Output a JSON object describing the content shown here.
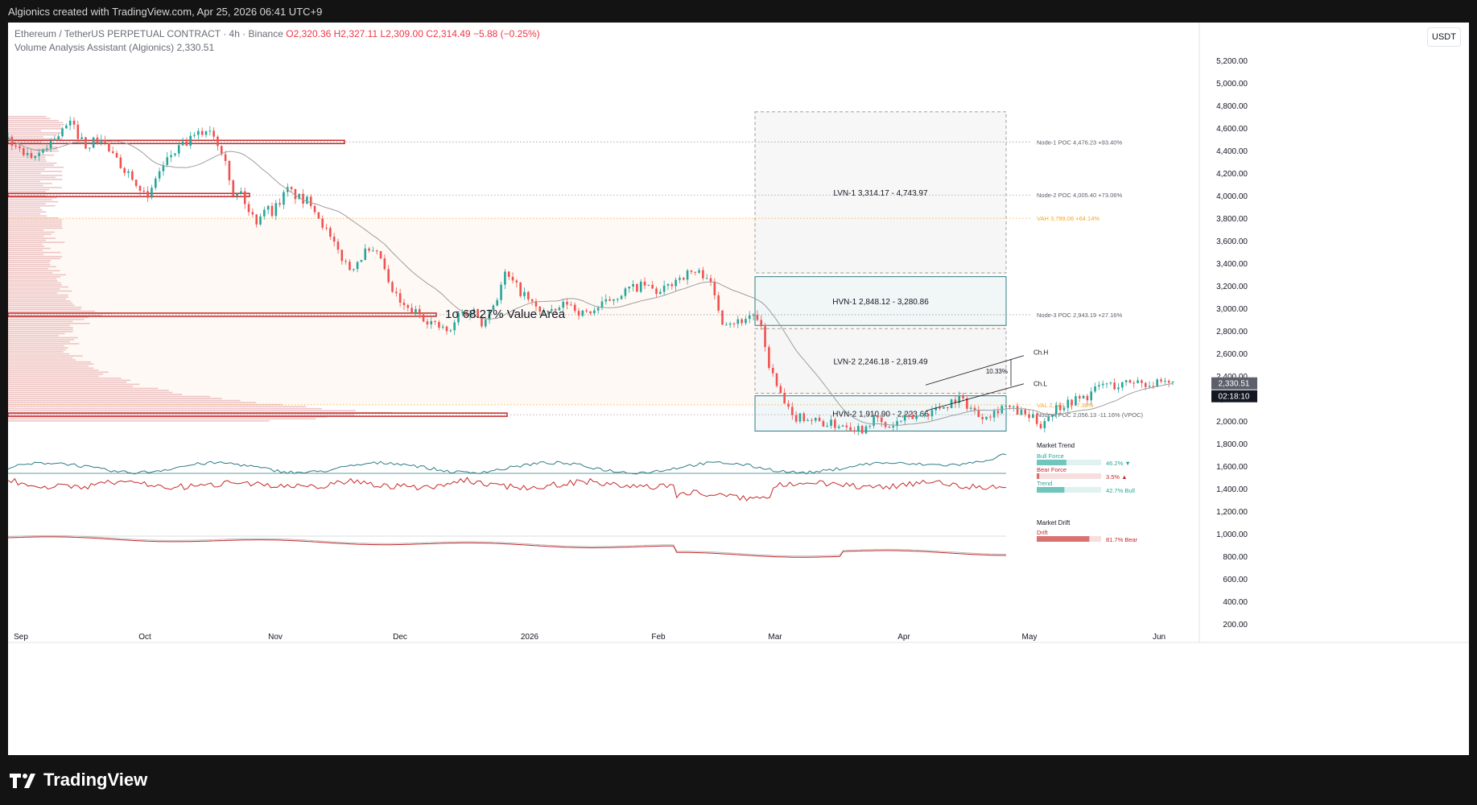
{
  "header": {
    "title": "Algionics created with TradingView.com, Apr 25, 2026 06:41 UTC+9"
  },
  "legend": {
    "symbol": "Ethereum / TetherUS PERPETUAL CONTRACT · 4h · Binance",
    "open": "O2,320.36",
    "high": "H2,327.11",
    "low": "L2,309.00",
    "close": "C2,314.49",
    "change": "−5.88 (−0.25%)",
    "indicator": "Volume Analysis Assistant (Algionics)",
    "indicator_value": "2,330.51"
  },
  "currency_button": "USDT",
  "brand": "TradingView",
  "colors": {
    "up": "#26a69a",
    "down": "#ef5350",
    "line": "#9e9e9e",
    "profile": "#e8b3b6",
    "poc": "#c62828",
    "val": "#f5a623",
    "box": "#2e7d86"
  },
  "chart_data": {
    "type": "candlestick",
    "y_axis": {
      "min": 0,
      "max": 5500,
      "ticks": [
        "5,200.00",
        "5,000.00",
        "4,800.00",
        "4,600.00",
        "4,400.00",
        "4,200.00",
        "4,000.00",
        "3,800.00",
        "3,600.00",
        "3,400.00",
        "3,200.00",
        "3,000.00",
        "2,800.00",
        "2,600.00",
        "2,400.00",
        "2,200.00",
        "2,000.00",
        "1,800.00",
        "1,600.00",
        "1,400.00",
        "1,200.00",
        "1,000.00",
        "800.00",
        "600.00",
        "400.00",
        "200.00"
      ]
    },
    "x_axis": {
      "labels": [
        "Sep",
        "Oct",
        "Nov",
        "Dec",
        "2026",
        "Feb",
        "Mar",
        "Apr",
        "May",
        "Jun"
      ]
    },
    "price_path": [
      [
        0,
        4500
      ],
      [
        3,
        4300
      ],
      [
        5,
        4450
      ],
      [
        8,
        4640
      ],
      [
        10,
        4450
      ],
      [
        12,
        4500
      ],
      [
        14,
        4300
      ],
      [
        16,
        4180
      ],
      [
        17,
        4080
      ],
      [
        18,
        3950
      ],
      [
        19,
        4160
      ],
      [
        21,
        4360
      ],
      [
        24,
        4520
      ],
      [
        26,
        4600
      ],
      [
        28,
        4350
      ],
      [
        29,
        3980
      ],
      [
        30,
        4030
      ],
      [
        31,
        3850
      ],
      [
        32,
        3780
      ],
      [
        33,
        3900
      ],
      [
        34,
        3860
      ],
      [
        36,
        4050
      ],
      [
        38,
        3950
      ],
      [
        39,
        3950
      ],
      [
        40,
        3820
      ],
      [
        42,
        3550
      ],
      [
        44,
        3350
      ],
      [
        46,
        3500
      ],
      [
        48,
        3450
      ],
      [
        49,
        3200
      ],
      [
        51,
        3000
      ],
      [
        53,
        2950
      ],
      [
        55,
        2850
      ],
      [
        57,
        2780
      ],
      [
        58,
        2950
      ],
      [
        60,
        2980
      ],
      [
        61,
        2880
      ],
      [
        63,
        3100
      ],
      [
        64,
        3300
      ],
      [
        66,
        3150
      ],
      [
        68,
        3000
      ],
      [
        70,
        2950
      ],
      [
        72,
        3050
      ],
      [
        74,
        2950
      ],
      [
        76,
        3000
      ],
      [
        78,
        3100
      ],
      [
        80,
        3170
      ],
      [
        82,
        3200
      ],
      [
        84,
        3130
      ],
      [
        86,
        3260
      ],
      [
        88,
        3320
      ],
      [
        90,
        3300
      ],
      [
        92,
        2900
      ],
      [
        94,
        2880
      ],
      [
        96,
        2950
      ],
      [
        97,
        2800
      ],
      [
        98,
        2500
      ],
      [
        99,
        2300
      ],
      [
        100,
        2150
      ],
      [
        101,
        2020
      ],
      [
        102,
        2050
      ],
      [
        104,
        2000
      ],
      [
        106,
        1970
      ],
      [
        108,
        1970
      ],
      [
        110,
        1930
      ],
      [
        111,
        2000
      ],
      [
        112,
        2020
      ],
      [
        113,
        1930
      ],
      [
        115,
        2000
      ],
      [
        117,
        2040
      ],
      [
        119,
        2090
      ],
      [
        121,
        2150
      ],
      [
        122,
        2200
      ],
      [
        123,
        2180
      ],
      [
        125,
        2050
      ],
      [
        127,
        2080
      ],
      [
        128,
        2140
      ],
      [
        130,
        2080
      ],
      [
        132,
        2020
      ],
      [
        133,
        1970
      ],
      [
        134,
        2050
      ],
      [
        135,
        2120
      ],
      [
        137,
        2180
      ],
      [
        139,
        2220
      ],
      [
        141,
        2330
      ],
      [
        143,
        2310
      ],
      [
        145,
        2360
      ],
      [
        147,
        2330
      ],
      [
        149,
        2320
      ],
      [
        150,
        2330
      ]
    ],
    "volume_profile_nodes": [
      {
        "label": "Node-1 POC 4,476.23  +93.40%",
        "value": 4476.23
      },
      {
        "label": "Node-2 POC 4,005.40  +73.06%",
        "value": 4005.4
      },
      {
        "label": "VAH 3,799.06  +64.14%",
        "value": 3799.06
      },
      {
        "label": "Node-3 POC 2,943.19  +27.16%",
        "value": 2943.19
      },
      {
        "label": "VAL 2,143.77  -7.38%",
        "value": 2143.77
      },
      {
        "label": "Node-4 POC 2,056.13  -11.16%  (VPOC)",
        "value": 2056.13
      }
    ],
    "zones": [
      {
        "label": "LVN-1  3,314.17 - 4,743.97",
        "low": 3314.17,
        "high": 4743.97,
        "style": "dashed"
      },
      {
        "label": "HVN-1  2,848.12 - 3,280.86",
        "low": 2848.12,
        "high": 3280.86,
        "style": "solid"
      },
      {
        "label": "LVN-2  2,246.18 - 2,819.49",
        "low": 2246.18,
        "high": 2819.49,
        "style": "dashed"
      },
      {
        "label": "HVN-2  1,910.90 - 2,223.66",
        "low": 1910.9,
        "high": 2223.66,
        "style": "solid"
      }
    ],
    "value_area_label": "1σ 68.27%  Value Area",
    "channel": {
      "high_label": "Ch.H",
      "low_label": "Ch.L",
      "width": "10.33%"
    },
    "last_price": "2,330.51",
    "countdown": "02:18:10",
    "market_trend": {
      "title": "Market Trend",
      "rows": [
        {
          "name": "Bull Force",
          "value": "46.2%",
          "arrow": "▼",
          "color": "#26a69a"
        },
        {
          "name": "Bear Force",
          "value": "3.5%",
          "arrow": "▲",
          "color": "#c62828"
        },
        {
          "name": "Trend",
          "value": "42.7% Bull",
          "arrow": "",
          "color": "#26a69a"
        }
      ]
    },
    "market_drift": {
      "title": "Market Drift",
      "rows": [
        {
          "name": "Drift",
          "value": "81.7% Bear",
          "color": "#c62828"
        }
      ]
    }
  }
}
